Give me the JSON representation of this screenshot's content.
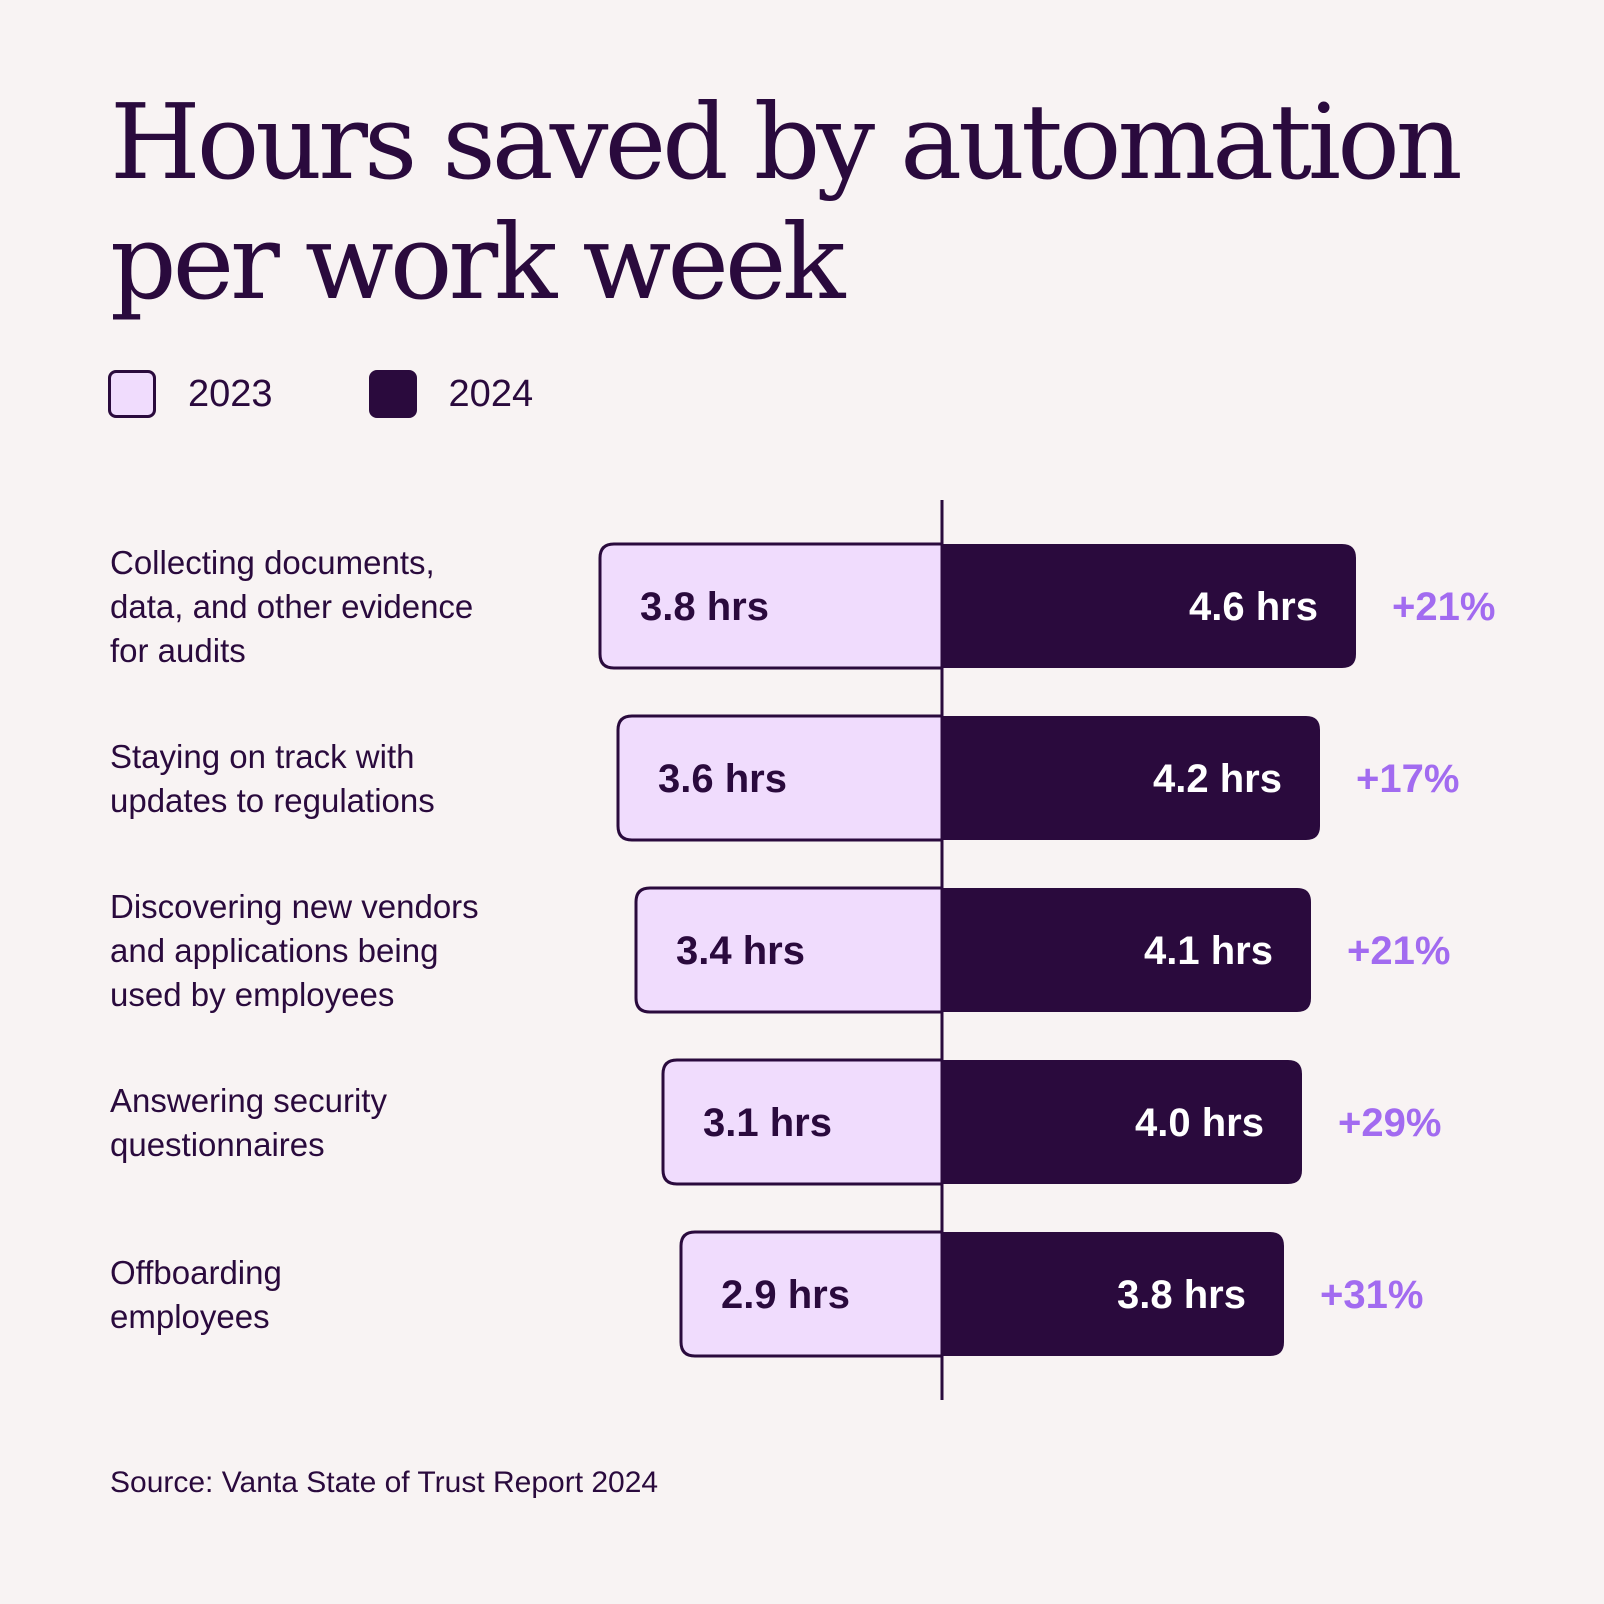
{
  "title_lines": [
    "Hours saved by automation",
    "per work week"
  ],
  "legend": [
    {
      "label": "2023",
      "color": "#f0dcfd"
    },
    {
      "label": "2024",
      "color": "#2a0a3d"
    }
  ],
  "colors": {
    "fill_2023": "#f0dcfd",
    "fill_2024": "#2a0a3d",
    "outline": "#2a0a3d",
    "percent": "#a26bf0",
    "text_dark": "#2a0a3d",
    "text_light": "#ffffff"
  },
  "chart_data": {
    "type": "bar",
    "orientation": "horizontal-diverging",
    "unit": "hrs",
    "categories": [
      [
        "Collecting documents,",
        "data, and other evidence",
        "for audits"
      ],
      [
        "Staying on track with",
        "updates to regulations"
      ],
      [
        "Discovering new vendors",
        "and applications being",
        "used by employees"
      ],
      [
        "Answering security",
        "questionnaires"
      ],
      [
        "Offboarding",
        "employees"
      ]
    ],
    "series": [
      {
        "name": "2023",
        "values": [
          3.8,
          3.6,
          3.4,
          3.1,
          2.9
        ],
        "labels": [
          "3.8 hrs",
          "3.6 hrs",
          "3.4 hrs",
          "3.1 hrs",
          "2.9 hrs"
        ]
      },
      {
        "name": "2024",
        "values": [
          4.6,
          4.2,
          4.1,
          4.0,
          3.8
        ],
        "labels": [
          "4.6 hrs",
          "4.2 hrs",
          "4.1 hrs",
          "4.0 hrs",
          "3.8 hrs"
        ]
      }
    ],
    "changes": [
      "+21%",
      "+17%",
      "+21%",
      "+29%",
      "+31%"
    ]
  },
  "source": "Source: Vanta State of Trust Report 2024"
}
